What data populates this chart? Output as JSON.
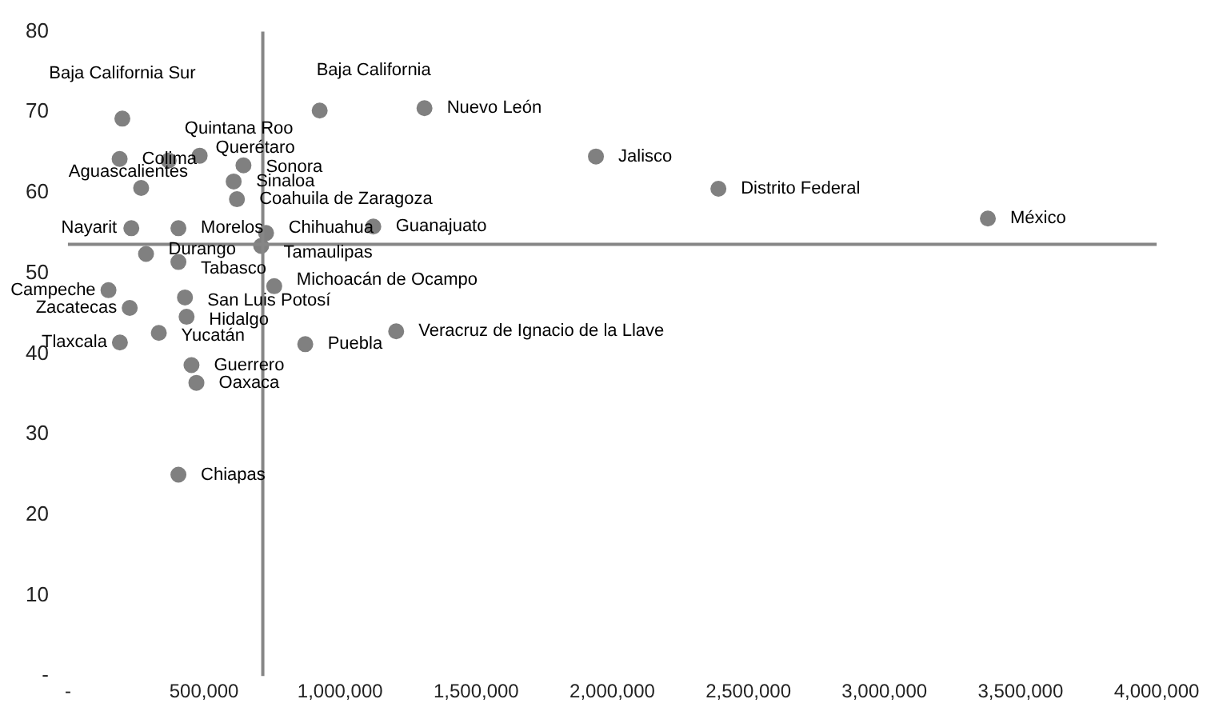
{
  "chart_data": {
    "type": "scatter",
    "xlim": [
      0,
      4000000
    ],
    "ylim": [
      0,
      80
    ],
    "xticks": [
      {
        "value": 0,
        "label": "-"
      },
      {
        "value": 500000,
        "label": "500,000"
      },
      {
        "value": 1000000,
        "label": "1,000,000"
      },
      {
        "value": 1500000,
        "label": "1,500,000"
      },
      {
        "value": 2000000,
        "label": "2,000,000"
      },
      {
        "value": 2500000,
        "label": "2,500,000"
      },
      {
        "value": 3000000,
        "label": "3,000,000"
      },
      {
        "value": 3500000,
        "label": "3,500,000"
      },
      {
        "value": 4000000,
        "label": "4,000,000"
      }
    ],
    "yticks": [
      {
        "value": 0,
        "label": "-"
      },
      10,
      20,
      30,
      40,
      50,
      60,
      70,
      80
    ],
    "grid": false,
    "legend": false,
    "marker": "circle",
    "series": [
      {
        "color": "#808080",
        "x": [
          200000,
          925000,
          1310000,
          1940000,
          2390000,
          3380000,
          190000,
          370000,
          484000,
          645000,
          609000,
          621000,
          269000,
          233000,
          406000,
          728000,
          710000,
          1122000,
          287000,
          406000,
          149000,
          430000,
          227000,
          436000,
          334000,
          191000,
          758000,
          872000,
          1206000,
          454000,
          472000,
          406000
        ],
        "values": [
          69.2,
          70.2,
          70.5,
          64.5,
          60.5,
          56.8,
          64.2,
          64,
          64.6,
          63.4,
          61.4,
          59.2,
          60.6,
          55.6,
          55.6,
          55,
          53.4,
          55.8,
          52.4,
          51.4,
          47.9,
          47,
          45.7,
          44.6,
          42.6,
          41.4,
          48.4,
          41.2,
          42.8,
          38.6,
          36.4,
          25
        ]
      }
    ],
    "ref_lines": [
      {
        "axis": "x",
        "value": 716000,
        "color": "#868686"
      },
      {
        "axis": "y",
        "value": 53.6,
        "color": "#868686"
      }
    ],
    "annotations": [
      {
        "text": "Baja California Sur",
        "x": 200000,
        "y": 69.2
      },
      {
        "text": "Baja California",
        "x": 925000,
        "y": 70.2
      },
      {
        "text": "Nuevo León",
        "x": 1310000,
        "y": 70.5
      },
      {
        "text": "Jalisco",
        "x": 1940000,
        "y": 64.5
      },
      {
        "text": "Distrito Federal",
        "x": 2390000,
        "y": 60.5
      },
      {
        "text": "México",
        "x": 3380000,
        "y": 56.8
      },
      {
        "text": "Colima",
        "x": 190000,
        "y": 64.2
      },
      {
        "text": "Quintana Roo",
        "x": 370000,
        "y": 64
      },
      {
        "text": "Querétaro",
        "x": 484000,
        "y": 64.6
      },
      {
        "text": "Sonora",
        "x": 645000,
        "y": 63.4
      },
      {
        "text": "Sinaloa",
        "x": 609000,
        "y": 61.4
      },
      {
        "text": "Coahuila de Zaragoza",
        "x": 621000,
        "y": 59.2
      },
      {
        "text": "Aguascalientes",
        "x": 269000,
        "y": 60.6
      },
      {
        "text": "Nayarit",
        "x": 233000,
        "y": 55.6
      },
      {
        "text": "Morelos",
        "x": 406000,
        "y": 55.6
      },
      {
        "text": "Chihuahua",
        "x": 728000,
        "y": 55
      },
      {
        "text": "Tamaulipas",
        "x": 710000,
        "y": 53.4
      },
      {
        "text": "Guanajuato",
        "x": 1122000,
        "y": 55.8
      },
      {
        "text": "Durango",
        "x": 287000,
        "y": 52.4
      },
      {
        "text": "Tabasco",
        "x": 406000,
        "y": 51.4
      },
      {
        "text": "Campeche",
        "x": 149000,
        "y": 47.9
      },
      {
        "text": "San Luis Potosí",
        "x": 430000,
        "y": 47
      },
      {
        "text": "Zacatecas",
        "x": 227000,
        "y": 45.7
      },
      {
        "text": "Hidalgo",
        "x": 436000,
        "y": 44.6
      },
      {
        "text": "Yucatán",
        "x": 334000,
        "y": 42.6
      },
      {
        "text": "Tlaxcala",
        "x": 191000,
        "y": 41.4
      },
      {
        "text": "Michoacán de Ocampo",
        "x": 758000,
        "y": 48.4
      },
      {
        "text": "Puebla",
        "x": 872000,
        "y": 41.2
      },
      {
        "text": "Veracruz de Ignacio de la Llave",
        "x": 1206000,
        "y": 42.8
      },
      {
        "text": "Guerrero",
        "x": 454000,
        "y": 38.6
      },
      {
        "text": "Oaxaca",
        "x": 472000,
        "y": 36.4
      },
      {
        "text": "Chiapas",
        "x": 406000,
        "y": 25
      }
    ]
  }
}
